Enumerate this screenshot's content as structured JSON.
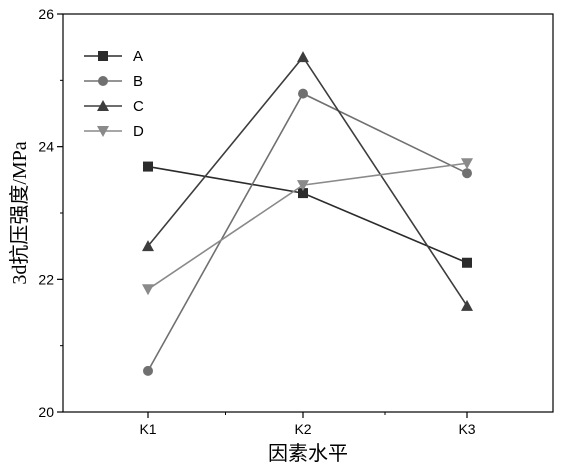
{
  "chart_data": {
    "type": "line",
    "categories": [
      "K1",
      "K2",
      "K3"
    ],
    "series": [
      {
        "name": "A",
        "values": [
          23.7,
          23.3,
          22.25
        ],
        "color": "#2b2b2b",
        "marker": "square"
      },
      {
        "name": "B",
        "values": [
          20.62,
          24.8,
          23.6
        ],
        "color": "#707070",
        "marker": "circle"
      },
      {
        "name": "C",
        "values": [
          22.5,
          25.35,
          21.6
        ],
        "color": "#3d3d3d",
        "marker": "triangle-up"
      },
      {
        "name": "D",
        "values": [
          21.85,
          23.42,
          23.75
        ],
        "color": "#8a8a8a",
        "marker": "triangle-down"
      }
    ],
    "ylim": [
      20,
      26
    ],
    "yticks": [
      "20",
      "22",
      "24",
      "26"
    ],
    "xlabel": "因素水平",
    "ylabel": "3d抗压强度/MPa",
    "legend_position": "top-left",
    "grid": false
  }
}
